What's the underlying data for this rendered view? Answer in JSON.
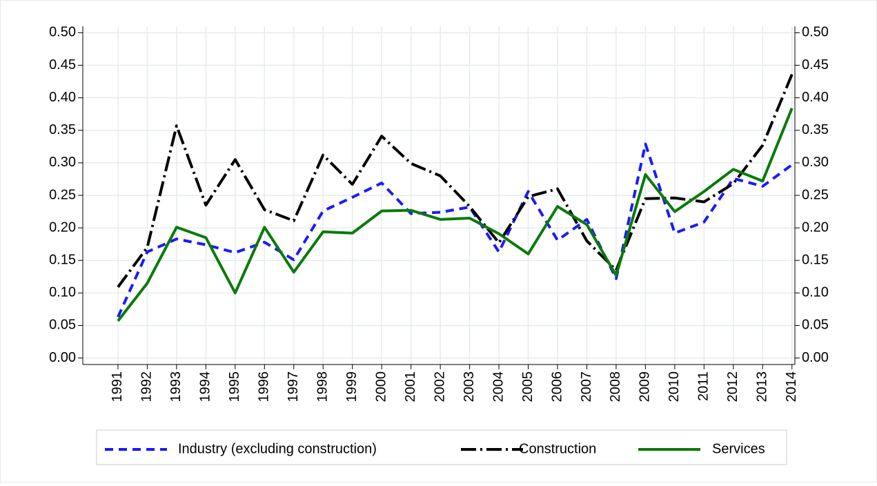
{
  "chart_data": {
    "type": "line",
    "x": [
      1991,
      1992,
      1993,
      1994,
      1995,
      1996,
      1997,
      1998,
      1999,
      2000,
      2001,
      2002,
      2003,
      2004,
      2005,
      2006,
      2007,
      2008,
      2009,
      2010,
      2011,
      2012,
      2013,
      2014
    ],
    "xlim": [
      1989.8,
      2014.1
    ],
    "xticks": [
      1991,
      1992,
      1993,
      1994,
      1995,
      1996,
      1997,
      1998,
      1999,
      2000,
      2001,
      2002,
      2003,
      2004,
      2005,
      2006,
      2007,
      2008,
      2009,
      2010,
      2011,
      2012,
      2013,
      2014
    ],
    "ylim": [
      -0.01,
      0.51
    ],
    "yticks": [
      {
        "value": 0,
        "label": "0.00"
      },
      {
        "value": 0.05,
        "label": "0.05"
      },
      {
        "value": 0.1,
        "label": "0.10"
      },
      {
        "value": 0.15,
        "label": "0.15"
      },
      {
        "value": 0.2,
        "label": "0.20"
      },
      {
        "value": 0.25,
        "label": "0.25"
      },
      {
        "value": 0.3,
        "label": "0.30"
      },
      {
        "value": 0.35,
        "label": "0.35"
      },
      {
        "value": 0.4,
        "label": "0.40"
      },
      {
        "value": 0.45,
        "label": "0.45"
      },
      {
        "value": 0.5,
        "label": "0.50"
      }
    ],
    "y2lim": [
      -0.01,
      0.51
    ],
    "y2ticks": [
      {
        "value": 0,
        "label": "0.00"
      },
      {
        "value": 0.05,
        "label": "0.05"
      },
      {
        "value": 0.1,
        "label": "0.10"
      },
      {
        "value": 0.15,
        "label": "0.15"
      },
      {
        "value": 0.2,
        "label": "0.20"
      },
      {
        "value": 0.25,
        "label": "0.25"
      },
      {
        "value": 0.3,
        "label": "0.30"
      },
      {
        "value": 0.35,
        "label": "0.35"
      },
      {
        "value": 0.4,
        "label": "0.40"
      },
      {
        "value": 0.45,
        "label": "0.45"
      },
      {
        "value": 0.5,
        "label": "0.50"
      }
    ],
    "grid": true,
    "legend": "bottom",
    "series": [
      {
        "name": "Industry (excluding construction)",
        "color": "#1a1aff",
        "dash": "12 8",
        "values": [
          0.063,
          0.163,
          0.183,
          0.174,
          0.162,
          0.178,
          0.151,
          0.226,
          0.247,
          0.269,
          0.222,
          0.224,
          0.232,
          0.163,
          0.256,
          0.181,
          0.213,
          0.122,
          0.329,
          0.192,
          0.209,
          0.276,
          0.264,
          0.297
        ]
      },
      {
        "name": "Construction",
        "color": "#000000",
        "dash": "22 6 3 6",
        "values": [
          0.109,
          0.17,
          0.357,
          0.235,
          0.305,
          0.228,
          0.211,
          0.312,
          0.267,
          0.341,
          0.299,
          0.28,
          0.233,
          0.177,
          0.248,
          0.26,
          0.18,
          0.135,
          0.245,
          0.246,
          0.24,
          0.268,
          0.327,
          0.436
        ]
      },
      {
        "name": "Services",
        "color": "#0a7a0a",
        "dash": "none",
        "values": [
          0.057,
          0.115,
          0.201,
          0.185,
          0.1,
          0.201,
          0.132,
          0.194,
          0.192,
          0.226,
          0.227,
          0.213,
          0.215,
          0.191,
          0.16,
          0.233,
          0.205,
          0.127,
          0.282,
          0.225,
          0.256,
          0.29,
          0.272,
          0.384
        ]
      }
    ]
  }
}
